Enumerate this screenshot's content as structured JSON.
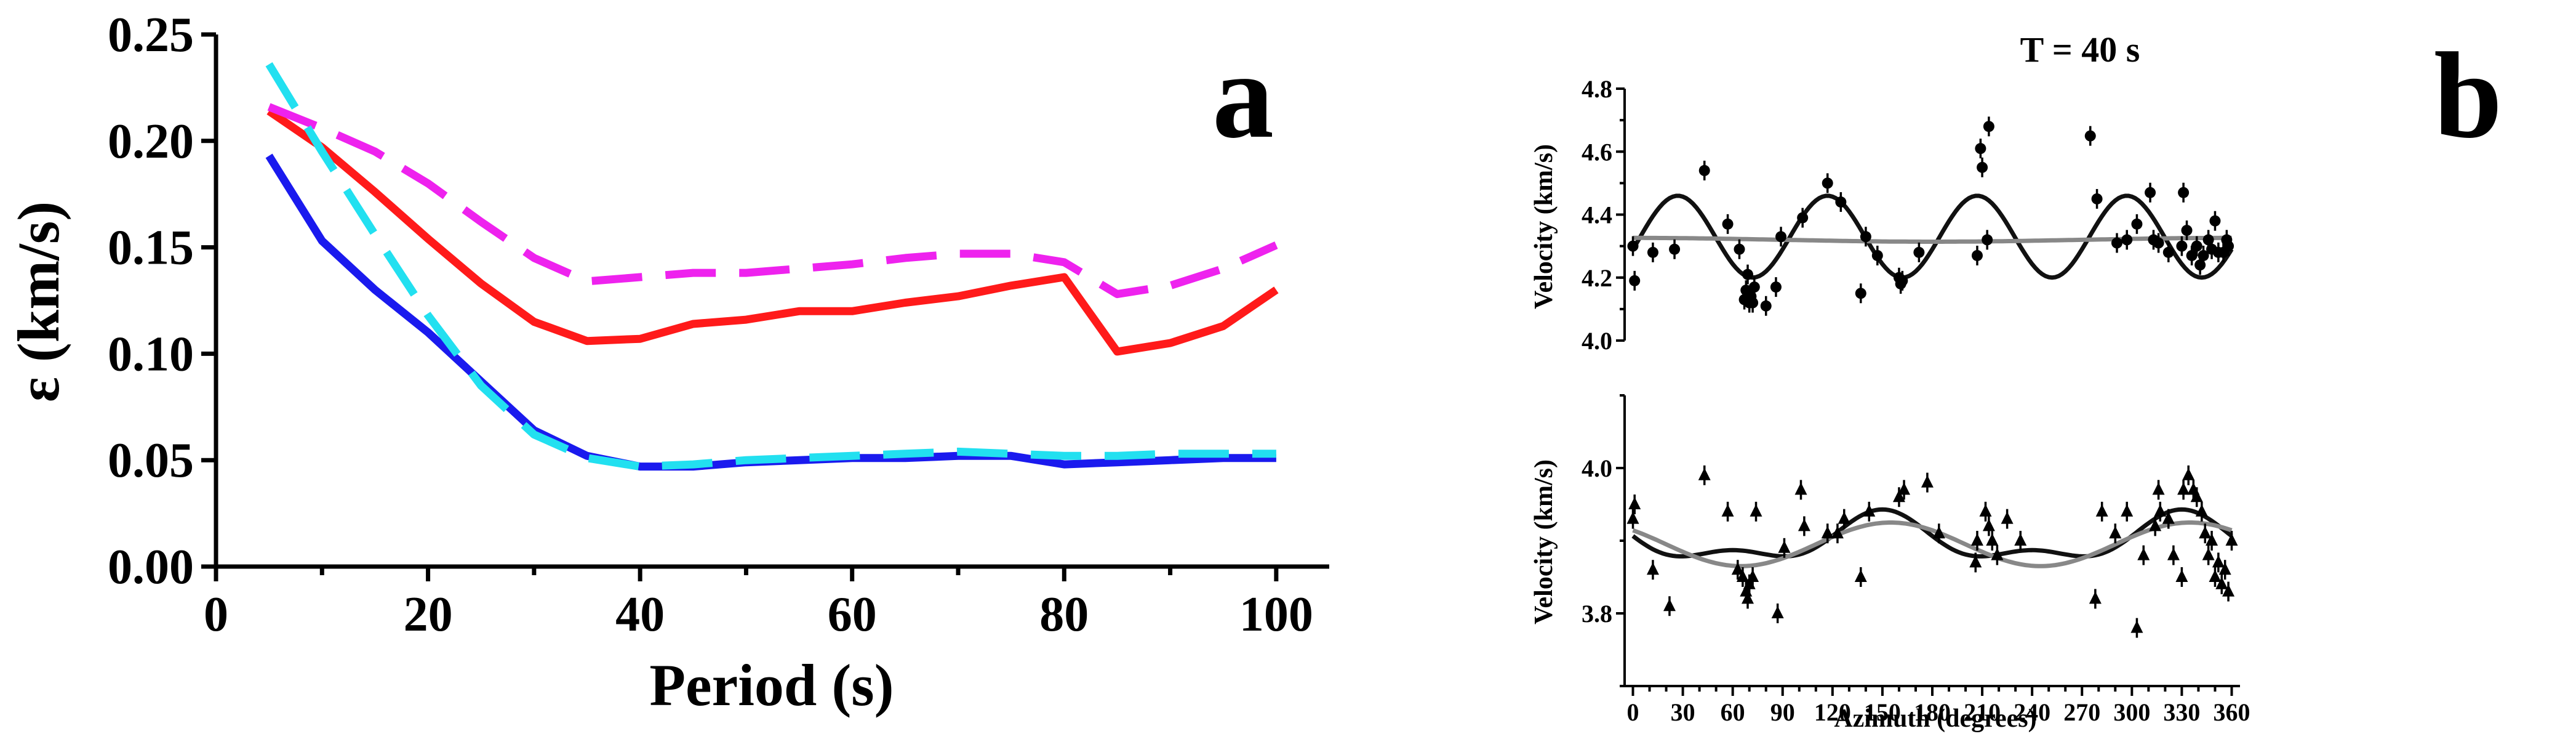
{
  "chart_data": [
    {
      "panel_label": "a",
      "type": "line",
      "title": "",
      "xlabel": "Period (s)",
      "ylabel": "ε (km/s)",
      "xlim": [
        0,
        105
      ],
      "ylim": [
        0,
        0.25
      ],
      "xticks": [
        "0",
        "20",
        "40",
        "60",
        "80",
        "100"
      ],
      "yticks": [
        "0.00",
        "0.05",
        "0.10",
        "0.15",
        "0.20",
        "0.25"
      ],
      "grid": false,
      "series": [
        {
          "name": "red solid",
          "color": "#ff1a1a",
          "style": "solid",
          "x": [
            5,
            10,
            15,
            20,
            25,
            30,
            35,
            40,
            45,
            50,
            55,
            60,
            65,
            70,
            75,
            80,
            85,
            90,
            95,
            100
          ],
          "y": [
            0.214,
            0.197,
            0.176,
            0.154,
            0.133,
            0.115,
            0.106,
            0.107,
            0.114,
            0.116,
            0.12,
            0.12,
            0.124,
            0.127,
            0.132,
            0.136,
            0.101,
            0.105,
            0.113,
            0.13
          ]
        },
        {
          "name": "magenta dashed",
          "color": "#ee22ee",
          "style": "dashed",
          "x": [
            5,
            10,
            15,
            20,
            25,
            30,
            35,
            40,
            45,
            50,
            55,
            60,
            65,
            70,
            75,
            80,
            85,
            90,
            95,
            100
          ],
          "y": [
            0.216,
            0.206,
            0.195,
            0.18,
            0.162,
            0.145,
            0.134,
            0.136,
            0.138,
            0.138,
            0.14,
            0.142,
            0.145,
            0.147,
            0.147,
            0.143,
            0.128,
            0.132,
            0.14,
            0.151
          ]
        },
        {
          "name": "blue solid",
          "color": "#1a1aee",
          "style": "solid",
          "x": [
            5,
            10,
            15,
            20,
            25,
            30,
            35,
            40,
            45,
            50,
            55,
            60,
            65,
            70,
            75,
            80,
            85,
            90,
            95,
            100
          ],
          "y": [
            0.193,
            0.153,
            0.13,
            0.11,
            0.087,
            0.064,
            0.052,
            0.047,
            0.047,
            0.049,
            0.05,
            0.051,
            0.051,
            0.052,
            0.052,
            0.048,
            0.049,
            0.05,
            0.051,
            0.051
          ]
        },
        {
          "name": "cyan dashed",
          "color": "#22e0f0",
          "style": "dashed",
          "x": [
            5,
            10,
            15,
            20,
            25,
            30,
            35,
            40,
            45,
            50,
            55,
            60,
            65,
            70,
            75,
            80,
            85,
            90,
            95,
            100
          ],
          "y": [
            0.236,
            0.195,
            0.156,
            0.118,
            0.085,
            0.062,
            0.051,
            0.047,
            0.048,
            0.05,
            0.051,
            0.052,
            0.053,
            0.054,
            0.053,
            0.052,
            0.052,
            0.053,
            0.053,
            0.053
          ]
        }
      ]
    },
    {
      "panel_label": "b",
      "title": "T = 40 s",
      "subplots": [
        {
          "type": "scatter+line",
          "ylabel": "Velocity (km/s)",
          "ylim": [
            4.0,
            4.8
          ],
          "yticks": [
            "4.0",
            "4.2",
            "4.4",
            "4.6",
            "4.8"
          ],
          "xlim": [
            -5,
            365
          ],
          "points": [
            [
              0,
              4.3
            ],
            [
              1,
              4.19
            ],
            [
              12,
              4.28
            ],
            [
              25,
              4.29
            ],
            [
              43,
              4.54
            ],
            [
              57,
              4.37
            ],
            [
              64,
              4.29
            ],
            [
              67,
              4.13
            ],
            [
              68,
              4.16
            ],
            [
              69,
              4.21
            ],
            [
              70,
              4.12
            ],
            [
              71,
              4.14
            ],
            [
              72,
              4.12
            ],
            [
              73,
              4.17
            ],
            [
              80,
              4.11
            ],
            [
              86,
              4.17
            ],
            [
              89,
              4.33
            ],
            [
              102,
              4.39
            ],
            [
              117,
              4.5
            ],
            [
              125,
              4.44
            ],
            [
              137,
              4.15
            ],
            [
              140,
              4.33
            ],
            [
              147,
              4.27
            ],
            [
              160,
              4.2
            ],
            [
              161,
              4.18
            ],
            [
              162,
              4.19
            ],
            [
              172,
              4.28
            ],
            [
              207,
              4.27
            ],
            [
              209,
              4.61
            ],
            [
              210,
              4.55
            ],
            [
              214,
              4.68
            ],
            [
              213,
              4.32
            ],
            [
              275,
              4.65
            ],
            [
              279,
              4.45
            ],
            [
              291,
              4.31
            ],
            [
              297,
              4.32
            ],
            [
              303,
              4.37
            ],
            [
              311,
              4.47
            ],
            [
              313,
              4.32
            ],
            [
              316,
              4.31
            ],
            [
              322,
              4.28
            ],
            [
              330,
              4.3
            ],
            [
              331,
              4.47
            ],
            [
              333,
              4.35
            ],
            [
              336,
              4.27
            ],
            [
              339,
              4.3
            ],
            [
              341,
              4.24
            ],
            [
              343,
              4.27
            ],
            [
              346,
              4.32
            ],
            [
              348,
              4.29
            ],
            [
              350,
              4.38
            ],
            [
              352,
              4.28
            ],
            [
              355,
              4.28
            ],
            [
              357,
              4.32
            ],
            [
              358,
              4.3
            ]
          ],
          "fits": [
            {
              "name": "black fit",
              "color": "#111111",
              "model": "4.33 + 0.13*cos(4*(az - 27))"
            },
            {
              "name": "gray fit",
              "color": "#888888",
              "model": "4.32 + 0.006*cos(az - 0)"
            }
          ]
        },
        {
          "type": "scatter+line",
          "ylabel": "Velocity (km/s)",
          "xlabel": "Azimuth (degrees)",
          "ylim": [
            3.7,
            4.1
          ],
          "yticks": [
            "3.8",
            "4.0"
          ],
          "xlim": [
            -5,
            365
          ],
          "xticks": [
            "0",
            "30",
            "60",
            "90",
            "120",
            "150",
            "180",
            "210",
            "240",
            "270",
            "300",
            "330",
            "360"
          ],
          "points": [
            [
              0,
              3.93
            ],
            [
              1,
              3.95
            ],
            [
              12,
              3.86
            ],
            [
              22,
              3.81
            ],
            [
              43,
              3.99
            ],
            [
              57,
              3.94
            ],
            [
              63,
              3.86
            ],
            [
              66,
              3.85
            ],
            [
              68,
              3.83
            ],
            [
              69,
              3.82
            ],
            [
              70,
              3.84
            ],
            [
              72,
              3.85
            ],
            [
              74,
              3.94
            ],
            [
              87,
              3.8
            ],
            [
              91,
              3.89
            ],
            [
              101,
              3.97
            ],
            [
              103,
              3.92
            ],
            [
              117,
              3.91
            ],
            [
              123,
              3.91
            ],
            [
              127,
              3.93
            ],
            [
              137,
              3.85
            ],
            [
              142,
              3.94
            ],
            [
              160,
              3.96
            ],
            [
              163,
              3.97
            ],
            [
              177,
              3.98
            ],
            [
              184,
              3.91
            ],
            [
              206,
              3.87
            ],
            [
              207,
              3.9
            ],
            [
              212,
              3.94
            ],
            [
              214,
              3.92
            ],
            [
              216,
              3.9
            ],
            [
              219,
              3.88
            ],
            [
              225,
              3.93
            ],
            [
              233,
              3.9
            ],
            [
              278,
              3.82
            ],
            [
              282,
              3.94
            ],
            [
              290,
              3.91
            ],
            [
              297,
              3.94
            ],
            [
              303,
              3.78
            ],
            [
              307,
              3.88
            ],
            [
              314,
              3.92
            ],
            [
              316,
              3.97
            ],
            [
              317,
              3.94
            ],
            [
              322,
              3.93
            ],
            [
              325,
              3.88
            ],
            [
              330,
              3.85
            ],
            [
              331,
              3.97
            ],
            [
              334,
              3.99
            ],
            [
              337,
              3.97
            ],
            [
              339,
              3.96
            ],
            [
              342,
              3.94
            ],
            [
              344,
              3.91
            ],
            [
              346,
              3.88
            ],
            [
              348,
              3.9
            ],
            [
              350,
              3.85
            ],
            [
              352,
              3.87
            ],
            [
              354,
              3.84
            ],
            [
              356,
              3.86
            ],
            [
              358,
              3.83
            ],
            [
              360,
              3.9
            ]
          ],
          "fits": [
            {
              "name": "black fit",
              "color": "#111111",
              "model": "3.90 + 0.028*cos(2*(az - 150)) + 0.015*cos(4*(az - 150))"
            },
            {
              "name": "gray fit",
              "color": "#888888",
              "model": "3.895 + 0.03*cos(2*(az - 155))"
            }
          ]
        }
      ]
    }
  ]
}
